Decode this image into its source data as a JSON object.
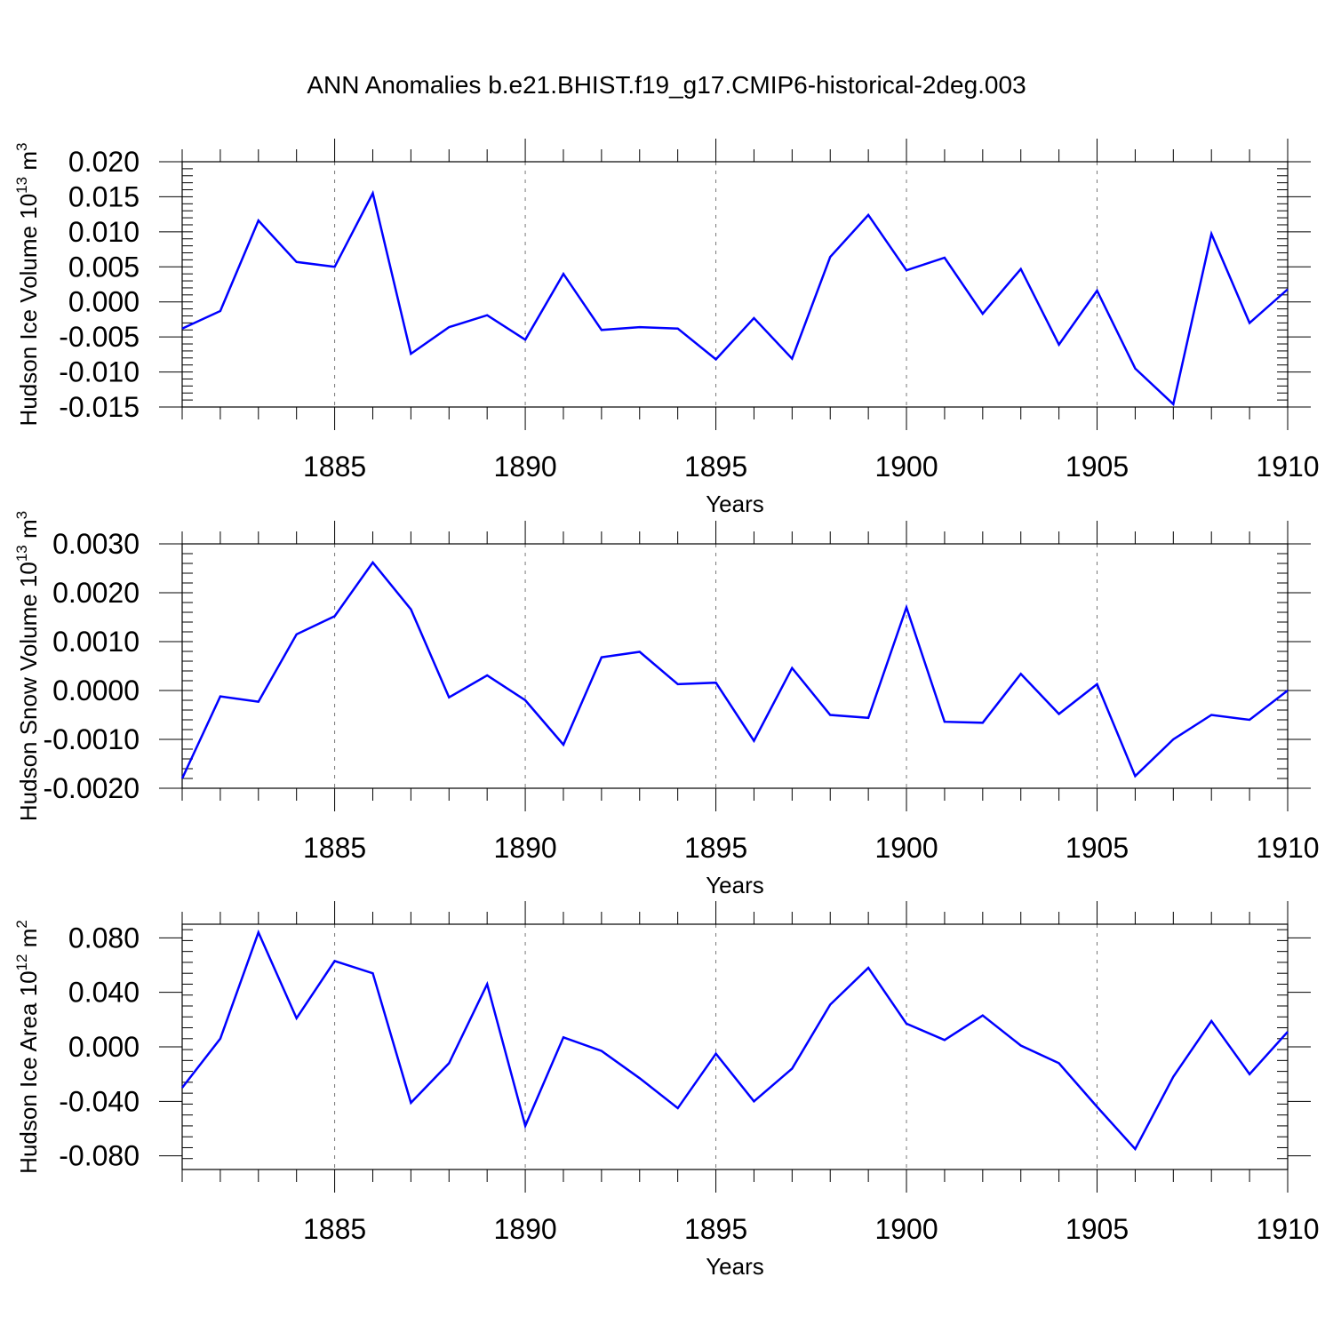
{
  "title": "ANN Anomalies b.e21.BHIST.f19_g17.CMIP6-historical-2deg.003",
  "chart_data": [
    {
      "type": "line",
      "title": "",
      "xlabel": "Years",
      "ylabel": "Hudson Ice Volume 10",
      "ylabel_exp": "13",
      "ylabel_unit": " m",
      "ylabel_unit_exp": "3",
      "xlim": [
        1881,
        1910
      ],
      "ylim": [
        -0.015,
        0.02
      ],
      "xticks": [
        1885,
        1890,
        1895,
        1900,
        1905,
        1910
      ],
      "xtick_labels": [
        "1885",
        "1890",
        "1895",
        "1900",
        "1905",
        "1910"
      ],
      "yticks": [
        -0.015,
        -0.01,
        -0.005,
        0.0,
        0.005,
        0.01,
        0.015,
        0.02
      ],
      "ytick_labels": [
        "-0.015",
        "-0.010",
        "-0.005",
        "0.000",
        "0.005",
        "0.010",
        "0.015",
        "0.020"
      ],
      "grid": "vertical dashed at major x ticks",
      "line_color": "#0000ff",
      "series": [
        {
          "x": [
            1881,
            1882,
            1883,
            1884,
            1885,
            1886,
            1887,
            1888,
            1889,
            1890,
            1891,
            1892,
            1893,
            1894,
            1895,
            1896,
            1897,
            1898,
            1899,
            1900,
            1901,
            1902,
            1903,
            1904,
            1905,
            1906,
            1907,
            1908,
            1909,
            1910
          ],
          "values": [
            -0.0038,
            -0.0013,
            0.0116,
            0.0057,
            0.005,
            0.0155,
            -0.0074,
            -0.0036,
            -0.0019,
            -0.0054,
            0.004,
            -0.004,
            -0.0036,
            -0.0038,
            -0.0082,
            -0.0023,
            -0.0081,
            0.0064,
            0.0124,
            0.0045,
            0.0063,
            -0.0017,
            0.0047,
            -0.0061,
            0.0016,
            -0.0095,
            -0.0146,
            0.0097,
            -0.003,
            0.0018
          ]
        }
      ]
    },
    {
      "type": "line",
      "title": "",
      "xlabel": "Years",
      "ylabel": "Hudson Snow Volume 10",
      "ylabel_exp": "13",
      "ylabel_unit": " m",
      "ylabel_unit_exp": "3",
      "xlim": [
        1881,
        1910
      ],
      "ylim": [
        -0.002,
        0.003
      ],
      "xticks": [
        1885,
        1890,
        1895,
        1900,
        1905,
        1910
      ],
      "xtick_labels": [
        "1885",
        "1890",
        "1895",
        "1900",
        "1905",
        "1910"
      ],
      "yticks": [
        -0.002,
        -0.001,
        0.0,
        0.001,
        0.002,
        0.003
      ],
      "ytick_labels": [
        "-0.0020",
        "-0.0010",
        "0.0000",
        "0.0010",
        "0.0020",
        "0.0030"
      ],
      "grid": "vertical dashed at major x ticks",
      "line_color": "#0000ff",
      "series": [
        {
          "x": [
            1881,
            1882,
            1883,
            1884,
            1885,
            1886,
            1887,
            1888,
            1889,
            1890,
            1891,
            1892,
            1893,
            1894,
            1895,
            1896,
            1897,
            1898,
            1899,
            1900,
            1901,
            1902,
            1903,
            1904,
            1905,
            1906,
            1907,
            1908,
            1909,
            1910
          ],
          "values": [
            -0.0018,
            -0.00012,
            -0.00023,
            0.00115,
            0.00152,
            0.00262,
            0.00166,
            -0.00014,
            0.00031,
            -0.0002,
            -0.00111,
            0.00068,
            0.00079,
            0.00013,
            0.00016,
            -0.00103,
            0.00046,
            -0.0005,
            -0.00056,
            0.0017,
            -0.00064,
            -0.00066,
            0.00034,
            -0.00048,
            0.00013,
            -0.00175,
            -0.001,
            -0.0005,
            -0.0006,
            0.0
          ]
        }
      ]
    },
    {
      "type": "line",
      "title": "",
      "xlabel": "Years",
      "ylabel": "Hudson Ice Area 10",
      "ylabel_exp": "12",
      "ylabel_unit": " m",
      "ylabel_unit_exp": "2",
      "xlim": [
        1881,
        1910
      ],
      "ylim": [
        -0.09,
        0.09
      ],
      "xticks": [
        1885,
        1890,
        1895,
        1900,
        1905,
        1910
      ],
      "xtick_labels": [
        "1885",
        "1890",
        "1895",
        "1900",
        "1905",
        "1910"
      ],
      "yticks": [
        -0.08,
        -0.04,
        0.0,
        0.04,
        0.08
      ],
      "ytick_labels": [
        "-0.080",
        "-0.040",
        "0.000",
        "0.040",
        "0.080"
      ],
      "grid": "vertical dashed at major x ticks",
      "line_color": "#0000ff",
      "series": [
        {
          "x": [
            1881,
            1882,
            1883,
            1884,
            1885,
            1886,
            1887,
            1888,
            1889,
            1890,
            1891,
            1892,
            1893,
            1894,
            1895,
            1896,
            1897,
            1898,
            1899,
            1900,
            1901,
            1902,
            1903,
            1904,
            1905,
            1906,
            1907,
            1908,
            1909,
            1910
          ],
          "values": [
            -0.03,
            0.006,
            0.084,
            0.021,
            0.063,
            0.054,
            -0.041,
            -0.012,
            0.046,
            -0.058,
            0.007,
            -0.003,
            -0.023,
            -0.045,
            -0.005,
            -0.04,
            -0.016,
            0.031,
            0.058,
            0.017,
            0.005,
            0.023,
            0.001,
            -0.012,
            -0.044,
            -0.075,
            -0.022,
            0.019,
            -0.02,
            0.011
          ]
        }
      ]
    }
  ]
}
